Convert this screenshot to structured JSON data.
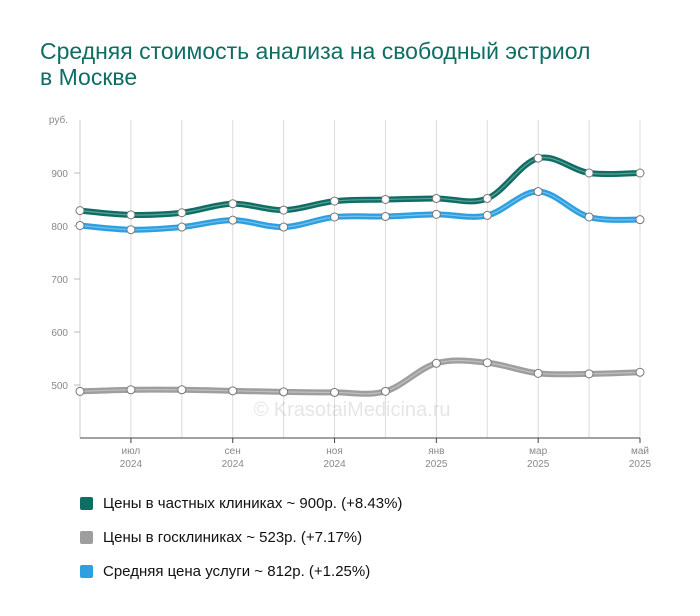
{
  "chart_data": {
    "type": "line",
    "title": "Средняя стоимость анализа на свободный эстриол в Москве",
    "ylabel": "руб.",
    "ylim": [
      400,
      1000
    ],
    "yticks": [
      500,
      600,
      700,
      800,
      900
    ],
    "grid": true,
    "x": [
      "2024-06",
      "2024-07",
      "2024-08",
      "2024-09",
      "2024-10",
      "2024-11",
      "2024-12",
      "2025-01",
      "2025-02",
      "2025-03",
      "2025-04",
      "2025-05"
    ],
    "xtick_labels": [
      {
        "month": "июл",
        "year": "2024"
      },
      {
        "month": "сен",
        "year": "2024"
      },
      {
        "month": "ноя",
        "year": "2024"
      },
      {
        "month": "янв",
        "year": "2025"
      },
      {
        "month": "мар",
        "year": "2025"
      },
      {
        "month": "май",
        "year": "2025"
      }
    ],
    "series": [
      {
        "name": "Цены в частных клиниках ~ 900р. (+8.43%)",
        "color": "#0f6e64",
        "values": [
          829,
          821,
          825,
          842,
          830,
          847,
          850,
          852,
          852,
          928,
          900,
          900
        ]
      },
      {
        "name": "Цены в госклиниках ~ 523р. (+7.17%)",
        "color": "#9e9e9e",
        "values": [
          488,
          491,
          491,
          489,
          487,
          486,
          488,
          541,
          542,
          522,
          521,
          524
        ]
      },
      {
        "name": "Средняя цена услуги ~ 812р. (+1.25%)",
        "color": "#2ea0e0",
        "values": [
          801,
          793,
          798,
          811,
          798,
          817,
          818,
          822,
          820,
          865,
          817,
          812
        ]
      }
    ],
    "watermark": "© KrasotaiMedicina.ru"
  }
}
